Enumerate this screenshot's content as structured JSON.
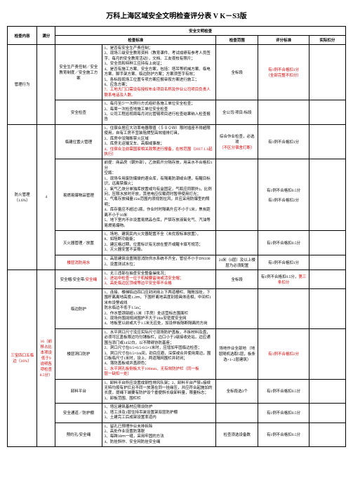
{
  "doc_title": "万科上海区域安全文明检查评分表 V K－S3版",
  "section_header": "安全文明检查",
  "columns": {
    "c1": "检查内容",
    "c2": "满分",
    "c3_item": "检查项",
    "c4": "检查标准",
    "c5": "检查范围",
    "c6": "评分标准",
    "c7": "实际扣分"
  },
  "groups": [
    {
      "category": "管理行为",
      "score": "",
      "rows": [
        {
          "item": "安全生产责任制／安全教育制度／安全施工方案",
          "std": "1、是否有安全生产责任制；\n2、现场三级安全教育资料（教育课件、考试成绩有参考人员签字、每月的安全教育活动），文档、工友夜校有照片；\n3、安全员和特种工应持有上岗证；\n4、是否有施工方案、安全方案，包括：塔吊等机械方案、临电方案、脚手架方案、临边防护方案；方案须签字有效；\n5、各标段现场工位置专项方案应报审按方案进行施工；\n6、应急方案；\n7、工地大门口需设有授权布业项目名称及作业公司项目负责人联系电话及人数。",
          "std_red_last": true,
          "range": "全标段",
          "rule": "有1例不合格扣1分\n（全部完整不扣分）",
          "rule_class": "red"
        },
        {
          "item": "安全检查",
          "std": "1、每月至少一次例行方式组织各施工单位安全检查；\n2、每周一次检查地施工单位安全检查\n3、公司工程巡视周每月对比管辖项目进行检查结果纳入检查报告",
          "range": "全公司/项目/标段",
          "rule": ""
        }
      ]
    },
    {
      "category": "防火管理（1.6%）",
      "score": "4",
      "rows": [
        {
          "item": "临建位置火管理",
          "std": "1、住宿合居应大功率电器限值（５００Ｗ）限时插座不得超限使用，自有工房不宜装阻燃型高效插排灯具，\n2、库房中没隔断禁火区域\n3、库房无运输叉车、高烟或事故；\n4、住宿合注前需国家相关政策进行报备，在核范围（2017.1.1起执行）",
          "std_red_last": true,
          "range": "综合作业检查，必选项（不区分宿舍灯断）",
          "rule": "有1例不合格扣1分"
        },
        {
          "item": "易燃易爆物品管理",
          "std": "前提：商品房（朝外部），乙炔瓶开分隔存放，用采水不合格扣1分\n空瓶：\n1、现场专用废防爆燥的避合库，有隔离防潮或合理，有醒目标识，远离禁烟火；\n2、氧气乙炔分单独库放置或均有盒固定，气瓶应同朝外)，比例问，压限水放时开放，其他电应仅载荷时暂停使用灯光；\n3、气瓶存放储量15m范围内须规划拉风，并应采用防爆型的照明；\n4、库存量应不超过5瓶，作业时时隔离升应不小于5米，焦炭距离不小于10米\n5、地下室内不许设置易燃品仓库，严禁存放液氧化气、汽油等易燃易爆物。",
          "range": "",
          "rule": "有1例不合格扣0.5分\n\n有1例不合格扣2分"
        },
        {
          "item": "灭火器管理／放置",
          "std": "1、场地、建筑民内火灾器配置不全（未优按标准放置），\n8、如阻断功能能；\n2、建区格过期，位置标识有无放在整齐或醒卡填写规范；\n3、灭火器安置不妥稳。",
          "range": "",
          "rule": "有1例不合格扣0.5分"
        },
        {
          "item_red": true,
          "item_score": "2",
          "item": "楼层消防用水",
          "std": "1、高层建筑设置随层消防供水系统不齐全，管径不小于DN100\n2、设置测试水位；",
          "range": "24米（8层）及以上楼层为必须配置",
          "sub_range": "红色",
          "rule": "有1例不合格扣1分"
        }
      ]
    },
    {
      "category_red": true,
      "category": "三宝四口五临边（16%）",
      "score_html": "16（前移占比本项设低于9说明各项检查8.5分）",
      "score_class": "red",
      "rows": [
        {
          "item_score": "3",
          "item": "安全帽/安全带/安全绳",
          "item_red_last": true,
          "std_before": "1、无三违部在抽查安全整备操批况；",
          "std_red": "2、进站中检查一位于机械要留询或活安全帽；\n3、高处临边区顶或等边平安全带不合格",
          "range": "全标段",
          "rule_before": "有1例不合格扣0.5分，",
          "rule_red": "第三条扣分"
        },
        {
          "item": "临边防护",
          "std": "1、连接、楼梯临边四口应封闭用上下两道栅栏、隔舱加挂，下围杆离离地高度1.2ｍ，下围杆离地高度别按具体连相，中间栏1米布设警戒线\n防水临边不低于1.5m；\n2、作水管颈部超1.5米（手房）处运营标志围面栏\n3、现场外围阔规闭围护不大于10m安密度安全网\n4、地板室以前或大于1.5米无应处，加设样板隔断隔离的方岗",
          "range": "",
          "rule": ""
        },
        {
          "item": "楼层洞口防护",
          "std": "1、水平洞口尺寸没应实际尺寸现场防护盖板，不拆材料及盘，必须可区盖板限边均匀铺板栏，边口小于2级接收处站，边应通围当添门或14公白，以不障碍协防基座；\n2、洞口尺寸在0.5×0.5-0.5×1米时，应增加牢固临边检查；\n3、洞口尺寸在0.5×1m间，劲目应避，深保或合并使用周边，围口板临尺寸1米时，设上、两道隔网围栏并封闭；\n4、落防盖板或井盖颜色；\n5、水平洞孔板侧板大于100mm、无有效防护栏（同一板",
          "std_red_last_only": "层一缺扣一处）",
          "range": "场地作业全部地 （地层随机选取5层，板条选+1~2层建筑）",
          "rule": "有1例不合格扣2分",
          "rule_class": "red"
        },
        {
          "item": "卸料平台",
          "std": "1、卸料平台所应设置成钢性排风队架；2、卸料平台严禁±接续无特均按有护拦且不同一放落在同一挂缘压，并应符合起施加的长度，提绳下端要有防护设个垂便斜长级卸料量，限量标志；\n3、卸板范围、围栏栏",
          "range": "全标段选3个",
          "rule": "有1例不合格扣0.5分"
        },
        {
          "item": "安全通道／防护棚",
          "std": "1、塔区建筑基材应限设防护\n2、塔工涉及1层住持吊装设置架双层防护棚\n3、土建完工后成架设置率道内",
          "range": "",
          "rule": "有1例不合格扣0.5分"
        },
        {
          "item": "预约孔/安全绳",
          "std": "1、留孔已预埋作业未排拆除\n2、高处作业设置防落脱\n3、每跨30ｍ一缝，采用牢固的方法\n4、防挂斜作、安全网防挂安全绳",
          "range": "检查须选设备数",
          "rule": "有1例不合格扣0.5分"
        }
      ]
    }
  ]
}
